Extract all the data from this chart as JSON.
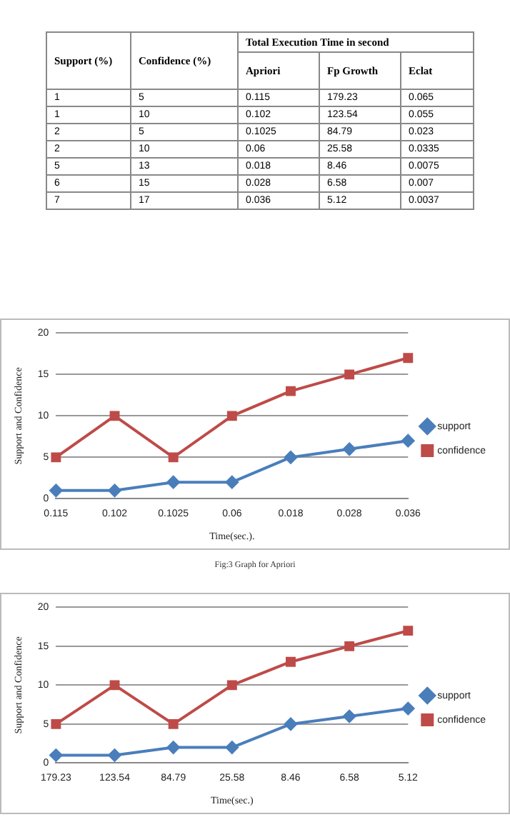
{
  "chart_data": [
    {
      "type": "other",
      "categories": [
        "Support (%)",
        "Confidence (%)",
        "Apriori",
        "Fp Growth",
        "Eclat"
      ],
      "annotations": [
        "Total Execution Time in second"
      ],
      "cell_labels": [
        [
          "1",
          "5",
          "0.115",
          "179.23",
          "0.065"
        ],
        [
          "1",
          "10",
          "0.102",
          "123.54",
          "0.055"
        ],
        [
          "2",
          "5",
          "0.1025",
          "84.79",
          "0.023"
        ],
        [
          "2",
          "10",
          "0.06",
          "25.58",
          "0.0335"
        ],
        [
          "5",
          "13",
          "0.018",
          "8.46",
          "0.0075"
        ],
        [
          "6",
          "15",
          "0.028",
          "6.58",
          "0.007"
        ],
        [
          "7",
          "17",
          "0.036",
          "5.12",
          "0.0037"
        ]
      ]
    },
    {
      "type": "line",
      "categories": [
        "0.115",
        "0.102",
        "0.1025",
        "0.06",
        "0.018",
        "0.028",
        "0.036"
      ],
      "xlabel": "Time(sec.).",
      "ylabel": "Support and Confidence",
      "ylim": [
        0,
        20
      ],
      "yticks": [
        0,
        5,
        10,
        15,
        20
      ],
      "grid": "y",
      "legend": "right",
      "annotations": [
        "Fig:3 Graph for Apriori"
      ],
      "series": [
        {
          "name": "support",
          "color": "#4a7ebb",
          "marker": "diamond",
          "values": [
            1,
            1,
            2,
            2,
            5,
            6,
            7
          ]
        },
        {
          "name": "confidence",
          "color": "#be4b48",
          "marker": "square",
          "values": [
            5,
            10,
            5,
            10,
            13,
            15,
            17
          ]
        }
      ]
    },
    {
      "type": "line",
      "categories": [
        "179.23",
        "123.54",
        "84.79",
        "25.58",
        "8.46",
        "6.58",
        "5.12"
      ],
      "xlabel": "Time(sec.)",
      "ylabel": "Support and Confidence",
      "ylim": [
        0,
        20
      ],
      "yticks": [
        0,
        5,
        10,
        15,
        20
      ],
      "grid": "y",
      "legend": "right",
      "series": [
        {
          "name": "support",
          "color": "#4a7ebb",
          "marker": "diamond",
          "values": [
            1,
            1,
            2,
            2,
            5,
            6,
            7
          ]
        },
        {
          "name": "confidence",
          "color": "#be4b48",
          "marker": "square",
          "values": [
            5,
            10,
            5,
            10,
            13,
            15,
            17
          ]
        }
      ]
    }
  ]
}
